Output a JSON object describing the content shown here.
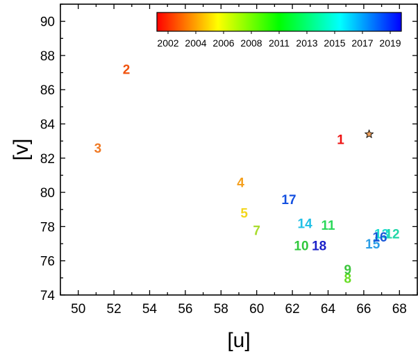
{
  "chart_data": {
    "type": "scatter",
    "title": "",
    "xlabel": "[u]",
    "ylabel": "[v]",
    "xlim": [
      49,
      69
    ],
    "ylim": [
      74,
      91
    ],
    "x_ticks": [
      50,
      52,
      54,
      56,
      58,
      60,
      62,
      64,
      66,
      68
    ],
    "y_ticks": [
      74,
      76,
      78,
      80,
      82,
      84,
      86,
      88,
      90
    ],
    "grid": false,
    "colorbar": {
      "placement": "top-right",
      "tick_labels": [
        "2002",
        "2004",
        "2006",
        "2008",
        "2011",
        "2013",
        "2015",
        "2017",
        "2019"
      ],
      "colors": [
        "#ff0000",
        "#ff8000",
        "#ffff00",
        "#80ff00",
        "#00ff00",
        "#00ff80",
        "#00ffff",
        "#0080ff",
        "#0000ff"
      ]
    },
    "points": [
      {
        "label": "1",
        "x": 64.7,
        "y": 83.1,
        "color": "#ee1111"
      },
      {
        "label": "2",
        "x": 52.7,
        "y": 87.2,
        "color": "#f0520c"
      },
      {
        "label": "3",
        "x": 51.1,
        "y": 82.6,
        "color": "#f07a25"
      },
      {
        "label": "4",
        "x": 59.1,
        "y": 80.6,
        "color": "#f5a01e"
      },
      {
        "label": "5",
        "x": 59.3,
        "y": 78.8,
        "color": "#f3d61c"
      },
      {
        "label": "7",
        "x": 60.0,
        "y": 77.8,
        "color": "#a8dc2c"
      },
      {
        "label": "8",
        "x": 65.1,
        "y": 75.0,
        "color": "#66dd22"
      },
      {
        "label": "9",
        "x": 65.1,
        "y": 75.5,
        "color": "#3ec63e"
      },
      {
        "label": "10",
        "x": 62.5,
        "y": 76.9,
        "color": "#30c83c"
      },
      {
        "label": "11",
        "x": 64.0,
        "y": 78.1,
        "color": "#2bd85a"
      },
      {
        "label": "12",
        "x": 67.6,
        "y": 77.6,
        "color": "#22d6a8"
      },
      {
        "label": "13",
        "x": 67.0,
        "y": 77.6,
        "color": "#20dcd0"
      },
      {
        "label": "14",
        "x": 62.7,
        "y": 78.2,
        "color": "#22c0e6"
      },
      {
        "label": "15",
        "x": 66.5,
        "y": 77.0,
        "color": "#2a9de6"
      },
      {
        "label": "16",
        "x": 66.9,
        "y": 77.4,
        "color": "#1a58d8"
      },
      {
        "label": "17",
        "x": 61.8,
        "y": 79.6,
        "color": "#1450e0"
      },
      {
        "label": "18",
        "x": 63.5,
        "y": 76.9,
        "color": "#1a20c8"
      }
    ],
    "markers": [
      {
        "shape": "star",
        "x": 66.3,
        "y": 83.4,
        "color": "#f4a460"
      }
    ]
  }
}
